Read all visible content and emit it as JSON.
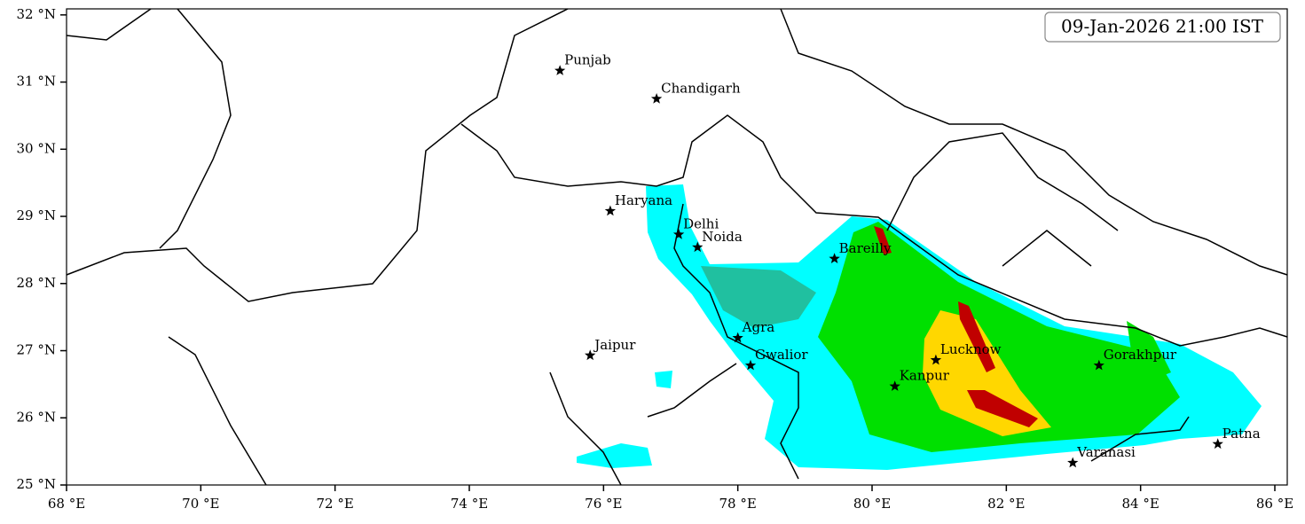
{
  "map": {
    "timestamp": "09-Jan-2026 21:00 IST",
    "xlim": [
      68,
      86.185
    ],
    "ylim": [
      25,
      32.09
    ],
    "xticks": [
      {
        "value": 68,
        "label": "68 °E"
      },
      {
        "value": 70,
        "label": "70 °E"
      },
      {
        "value": 72,
        "label": "72 °E"
      },
      {
        "value": 74,
        "label": "74 °E"
      },
      {
        "value": 76,
        "label": "76 °E"
      },
      {
        "value": 78,
        "label": "78 °E"
      },
      {
        "value": 80,
        "label": "80 °E"
      },
      {
        "value": 82,
        "label": "82 °E"
      },
      {
        "value": 84,
        "label": "84 °E"
      },
      {
        "value": 86,
        "label": "86 °E"
      }
    ],
    "yticks": [
      {
        "value": 25,
        "label": "25 °N"
      },
      {
        "value": 26,
        "label": "26 °N"
      },
      {
        "value": 27,
        "label": "27 °N"
      },
      {
        "value": 28,
        "label": "28 °N"
      },
      {
        "value": 29,
        "label": "29 °N"
      },
      {
        "value": 30,
        "label": "30 °N"
      },
      {
        "value": 31,
        "label": "31 °N"
      },
      {
        "value": 32,
        "label": "32 °N"
      }
    ],
    "cities": [
      {
        "name": "Punjab",
        "lon": 75.35,
        "lat": 31.17
      },
      {
        "name": "Chandigarh",
        "lon": 76.79,
        "lat": 30.75
      },
      {
        "name": "Haryana",
        "lon": 76.1,
        "lat": 29.08
      },
      {
        "name": "Delhi",
        "lon": 77.12,
        "lat": 28.73
      },
      {
        "name": "Noida",
        "lon": 77.4,
        "lat": 28.54
      },
      {
        "name": "Bareilly",
        "lon": 79.44,
        "lat": 28.37
      },
      {
        "name": "Agra",
        "lon": 78.0,
        "lat": 27.19
      },
      {
        "name": "Jaipur",
        "lon": 75.8,
        "lat": 26.93
      },
      {
        "name": "Gwalior",
        "lon": 78.19,
        "lat": 26.78
      },
      {
        "name": "Lucknow",
        "lon": 80.95,
        "lat": 26.86
      },
      {
        "name": "Kanpur",
        "lon": 80.34,
        "lat": 26.47
      },
      {
        "name": "Gorakhpur",
        "lon": 83.38,
        "lat": 26.78
      },
      {
        "name": "Varanasi",
        "lon": 82.99,
        "lat": 25.33
      },
      {
        "name": "Patna",
        "lon": 85.15,
        "lat": 25.61
      }
    ]
  }
}
